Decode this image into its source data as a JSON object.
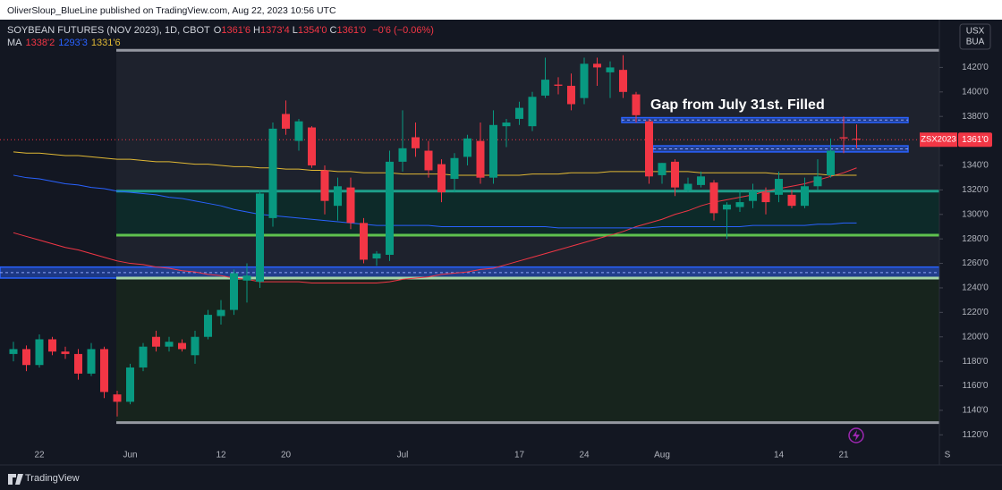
{
  "chart_data": {
    "type": "candlestick",
    "credit": "OliverSloup_BlueLine published on TradingView.com, Aug 22, 2023 10:56 UTC",
    "title": "SOYBEAN FUTURES (NOV 2023), 1D, CBOT",
    "ohlc_header": [
      {
        "key": "O",
        "value": "1361'6"
      },
      {
        "key": "H",
        "value": "1373'4"
      },
      {
        "key": "L",
        "value": "1354'0"
      },
      {
        "key": "C",
        "value": "1361'0"
      }
    ],
    "change": "−0'6 (−0.06%)",
    "ma_label": "MA",
    "currency": [
      "USX",
      "BUA"
    ],
    "last_price": {
      "ticker": "ZSX2023",
      "label": "1361'0"
    },
    "annotation": "Gap from July 31st. Filled",
    "brand": "TradingView",
    "up_color": "#089981",
    "down_color": "#f23645",
    "categories": [
      null,
      null,
      "22",
      null,
      null,
      null,
      null,
      null,
      null,
      "Jun",
      null,
      null,
      null,
      null,
      null,
      null,
      "12",
      null,
      null,
      null,
      null,
      "20",
      null,
      null,
      null,
      null,
      null,
      null,
      null,
      null,
      "Jul",
      null,
      null,
      null,
      null,
      null,
      null,
      null,
      null,
      "17",
      null,
      null,
      null,
      null,
      "24",
      null,
      null,
      null,
      null,
      null,
      "Aug",
      null,
      null,
      null,
      null,
      null,
      null,
      null,
      null,
      "14",
      null,
      null,
      null,
      null,
      "21",
      null,
      null,
      null,
      null,
      null,
      null,
      null,
      "S"
    ],
    "open": [
      1186,
      1190,
      1177,
      1198,
      1188,
      1186,
      1170,
      1190,
      1153,
      1147,
      1175,
      1200,
      1192,
      1195,
      1185,
      1200,
      1217,
      1222,
      1246,
      1245,
      1297,
      1382,
      1360,
      1371,
      1336,
      1307,
      1322,
      1293,
      1264,
      1267,
      1343,
      1363,
      1352,
      1341,
      1329,
      1347,
      1360,
      1330,
      1372,
      1378,
      1372,
      1397,
      1406,
      1405,
      1395,
      1423,
      1416,
      1418,
      1398,
      1376,
      1332,
      1343,
      1320,
      1324,
      1326,
      1304,
      1306,
      1311,
      1318,
      1316,
      1316,
      1307,
      1323,
      1332,
      1363,
      1361.75,
      null,
      null,
      null,
      null,
      null,
      null,
      null
    ],
    "high": [
      1196,
      1193,
      1202,
      1200,
      1192,
      1190,
      1195,
      1192,
      1156,
      1178,
      1195,
      1205,
      1200,
      1198,
      1205,
      1222,
      1230,
      1255,
      1260,
      1320,
      1375,
      1393,
      1378,
      1372,
      1340,
      1330,
      1330,
      1297,
      1270,
      1352,
      1385,
      1375,
      1360,
      1345,
      1350,
      1365,
      1375,
      1385,
      1378,
      1392,
      1400,
      1428,
      1412,
      1415,
      1428,
      1428,
      1425,
      1430,
      1400,
      1378,
      1342,
      1345,
      1330,
      1335,
      1328,
      1310,
      1320,
      1325,
      1322,
      1335,
      1320,
      1330,
      1345,
      1362,
      1380,
      1373.5,
      null,
      null,
      null,
      null,
      null,
      null,
      null
    ],
    "low": [
      1180,
      1172,
      1175,
      1185,
      1182,
      1165,
      1168,
      1150,
      1135,
      1145,
      1172,
      1188,
      1188,
      1188,
      1178,
      1198,
      1210,
      1218,
      1228,
      1240,
      1290,
      1365,
      1352,
      1338,
      1300,
      1295,
      1288,
      1260,
      1258,
      1262,
      1335,
      1347,
      1330,
      1310,
      1318,
      1340,
      1325,
      1325,
      1355,
      1373,
      1368,
      1395,
      1398,
      1385,
      1390,
      1405,
      1395,
      1395,
      1375,
      1325,
      1325,
      1315,
      1318,
      1322,
      1295,
      1280,
      1302,
      1305,
      1300,
      1310,
      1305,
      1305,
      1320,
      1330,
      1350,
      1354,
      null,
      null,
      null,
      null,
      null,
      null,
      null
    ],
    "close": [
      1190,
      1177,
      1198,
      1188,
      1186,
      1170,
      1190,
      1155,
      1147,
      1175,
      1192,
      1192,
      1196,
      1190,
      1200,
      1218,
      1222,
      1252,
      1250,
      1317,
      1370,
      1370,
      1376,
      1340,
      1311,
      1323,
      1293,
      1263,
      1268,
      1343,
      1354,
      1354,
      1336,
      1318,
      1346,
      1362,
      1330,
      1373,
      1375,
      1387,
      1396,
      1410,
      1405,
      1390,
      1423,
      1420,
      1420,
      1400,
      1381,
      1331,
      1342,
      1322,
      1325,
      1331,
      1301,
      1308,
      1310,
      1319,
      1310,
      1329,
      1307,
      1323,
      1331,
      1352,
      1362,
      1361,
      null,
      null,
      null,
      null,
      null,
      null,
      null
    ],
    "series": [
      {
        "name": "1338'2",
        "color": "#f23645",
        "values": [
          1285,
          1282,
          1279,
          1276,
          1273,
          1271,
          1268,
          1265,
          1262,
          1260,
          1259,
          1257,
          1256,
          1254,
          1253,
          1251,
          1250,
          1248,
          1247,
          1245,
          1245,
          1245,
          1245,
          1244,
          1244,
          1244,
          1244,
          1244,
          1244,
          1245,
          1247,
          1248,
          1249,
          1251,
          1252,
          1253,
          1255,
          1256,
          1259,
          1262,
          1265,
          1268,
          1271,
          1274,
          1277,
          1280,
          1283,
          1286,
          1290,
          1293,
          1296,
          1300,
          1303,
          1307,
          1310,
          1312,
          1314,
          1316,
          1319,
          1321,
          1323,
          1325,
          1328,
          1331,
          1334,
          1338,
          null,
          null,
          null,
          null,
          null,
          null,
          null
        ]
      },
      {
        "name": "1293'3",
        "color": "#2962ff",
        "values": [
          1332,
          1330,
          1329,
          1327,
          1325,
          1324,
          1322,
          1321,
          1319,
          1318,
          1317,
          1316,
          1314,
          1313,
          1311,
          1309,
          1307,
          1304,
          1302,
          1300,
          1299,
          1298,
          1297,
          1296,
          1295,
          1294,
          1293,
          1292,
          1291,
          1291,
          1291,
          1291,
          1291,
          1290,
          1290,
          1290,
          1290,
          1290,
          1290,
          1290,
          1290,
          1290,
          1289,
          1289,
          1289,
          1289,
          1289,
          1289,
          1289,
          1289,
          1290,
          1290,
          1290,
          1290,
          1290,
          1290,
          1290,
          1291,
          1291,
          1291,
          1291,
          1291,
          1292,
          1292,
          1293,
          1293,
          null,
          null,
          null,
          null,
          null,
          null,
          null
        ]
      },
      {
        "name": "1331'6",
        "color": "#e0b834",
        "values": [
          1351,
          1350,
          1350,
          1349,
          1348,
          1348,
          1347,
          1346,
          1345,
          1345,
          1344,
          1343,
          1343,
          1342,
          1341,
          1341,
          1340,
          1339,
          1339,
          1338,
          1338,
          1337,
          1337,
          1336,
          1336,
          1335,
          1335,
          1334,
          1334,
          1334,
          1333,
          1333,
          1333,
          1333,
          1332,
          1332,
          1332,
          1332,
          1332,
          1332,
          1333,
          1333,
          1333,
          1334,
          1334,
          1334,
          1335,
          1335,
          1335,
          1335,
          1335,
          1335,
          1335,
          1334,
          1334,
          1334,
          1334,
          1334,
          1334,
          1333,
          1333,
          1333,
          1333,
          1332,
          1332,
          1332,
          null,
          null,
          null,
          null,
          null,
          null,
          null
        ]
      }
    ],
    "fills": [
      {
        "from": 1130,
        "to": 1434,
        "color": "#1e222d"
      },
      {
        "from": 1283,
        "to": 1319,
        "color": "#0d2a29"
      },
      {
        "from": 1130,
        "to": 1248,
        "color": "#17241d"
      }
    ],
    "levels": [
      {
        "price": 1434,
        "color": "#9598a1"
      },
      {
        "price": 1130,
        "color": "#9598a1"
      },
      {
        "price": 1319,
        "color": "#1e9e8a"
      },
      {
        "price": 1283,
        "color": "#5fc24e"
      },
      {
        "price": 1248,
        "color": "#a5d6a7"
      }
    ],
    "zones": [
      {
        "from": 1248,
        "to": 1257,
        "color": "#2962ff"
      },
      {
        "from": 1375,
        "to": 1379,
        "color": "#2962ff"
      },
      {
        "from": 1351,
        "to": 1356,
        "color": "#2962ff"
      }
    ],
    "ylim": [
      1110,
      1459
    ],
    "yticks": [
      {
        "value": 1120,
        "label": "1120'0"
      },
      {
        "value": 1140,
        "label": "1140'0"
      },
      {
        "value": 1160,
        "label": "1160'0"
      },
      {
        "value": 1180,
        "label": "1180'0"
      },
      {
        "value": 1200,
        "label": "1200'0"
      },
      {
        "value": 1220,
        "label": "1220'0"
      },
      {
        "value": 1240,
        "label": "1240'0"
      },
      {
        "value": 1260,
        "label": "1260'0"
      },
      {
        "value": 1280,
        "label": "1280'0"
      },
      {
        "value": 1300,
        "label": "1300'0"
      },
      {
        "value": 1320,
        "label": "1320'0"
      },
      {
        "value": 1340,
        "label": "1340'0"
      },
      {
        "value": 1360,
        "label": "1360'0"
      },
      {
        "value": 1380,
        "label": "1380'0"
      },
      {
        "value": 1400,
        "label": "1400'0"
      },
      {
        "value": 1420,
        "label": "1420'0"
      }
    ]
  }
}
